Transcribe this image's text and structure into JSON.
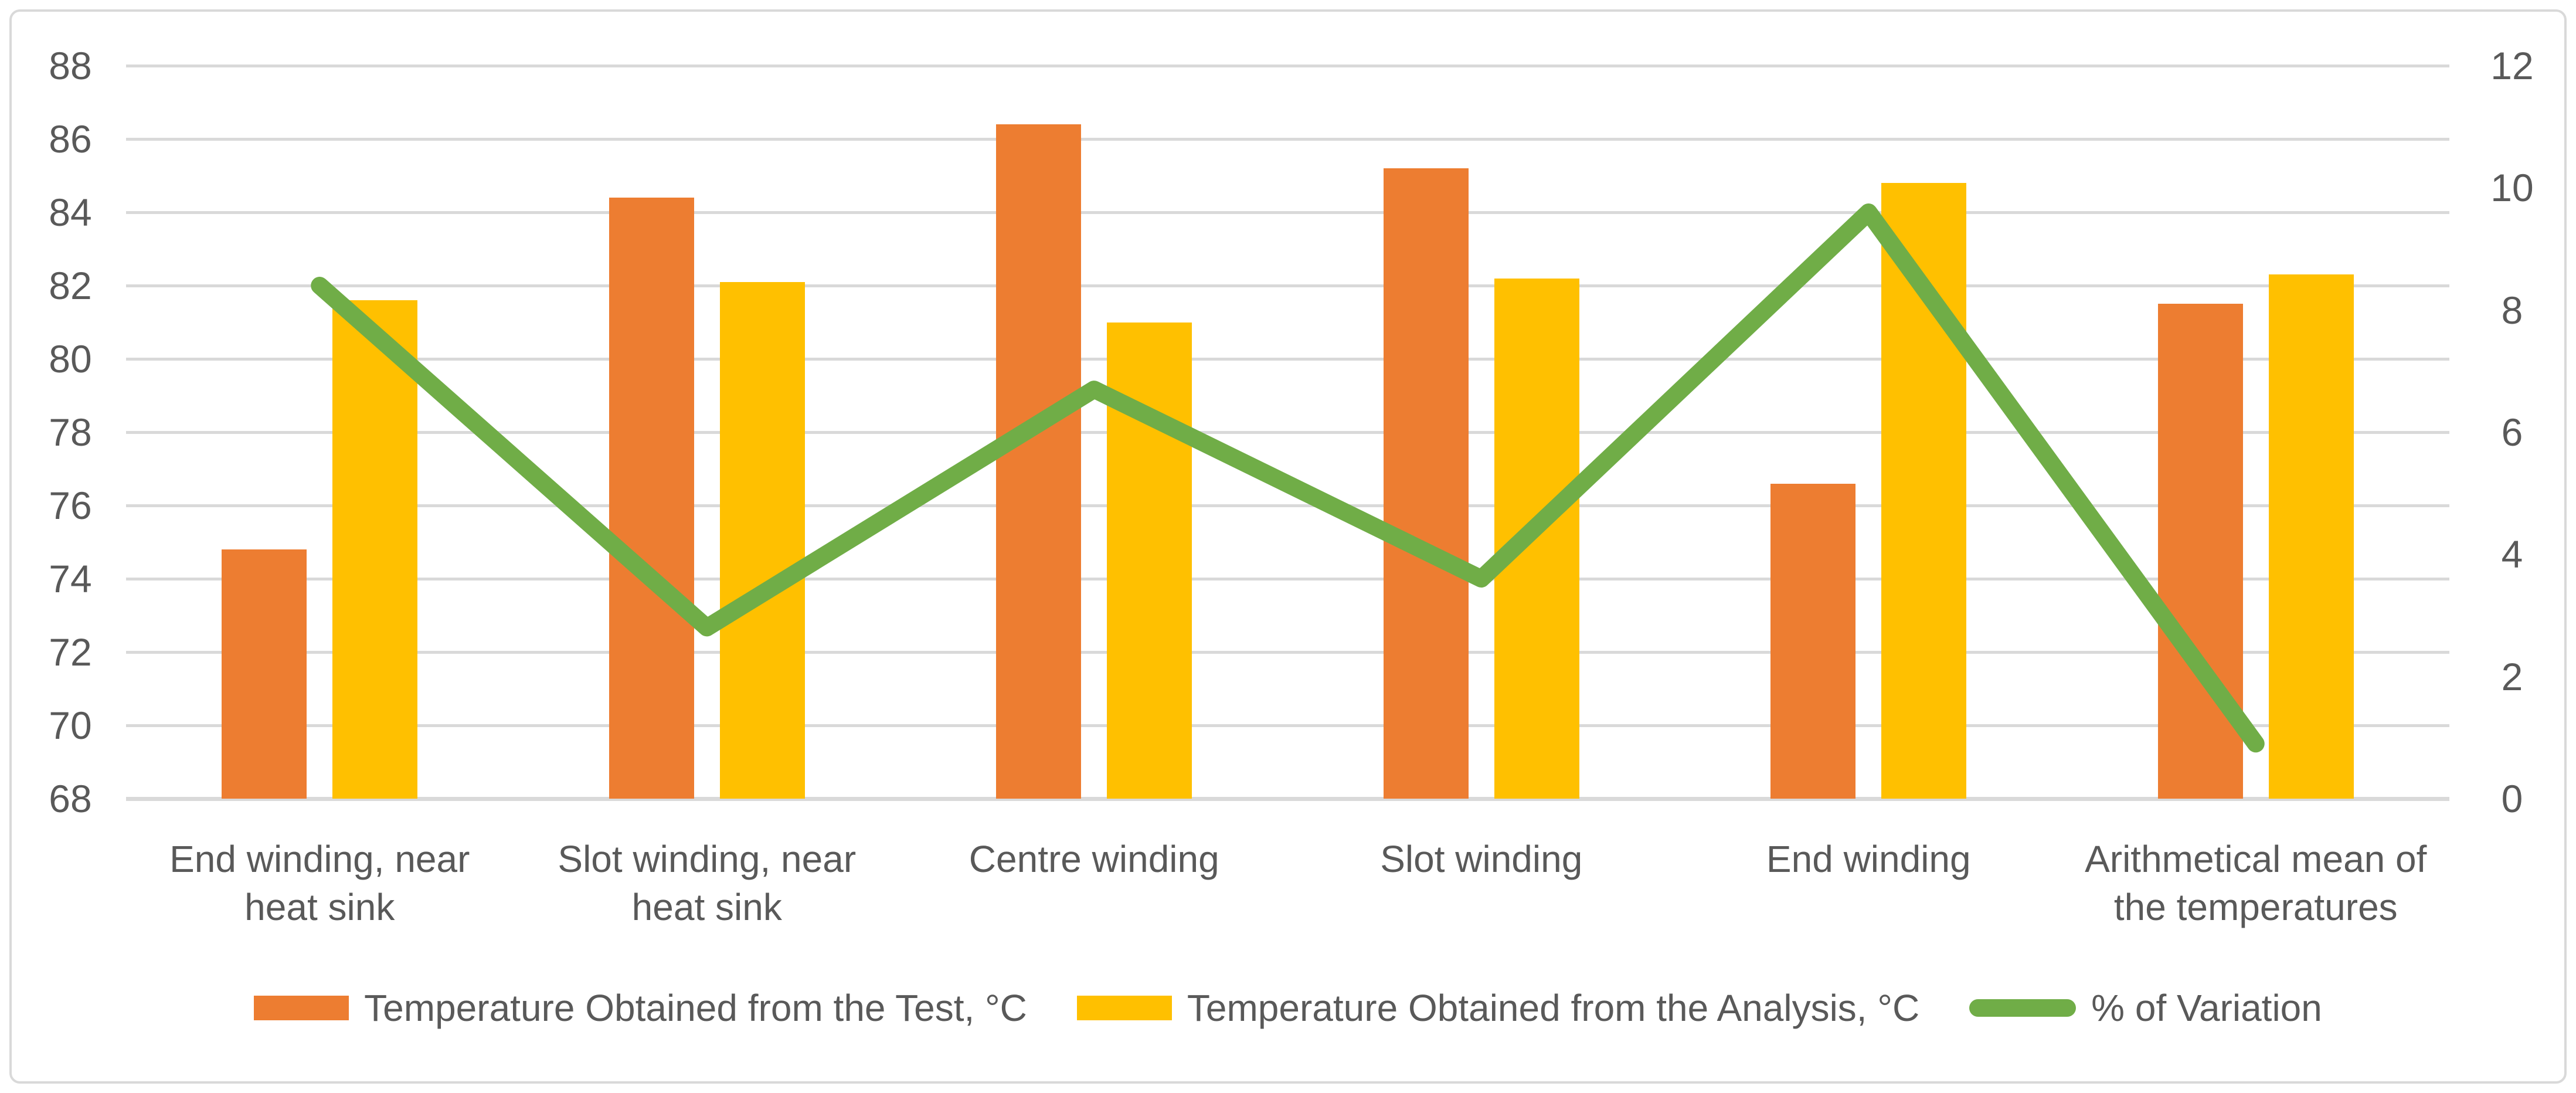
{
  "chart_data": {
    "type": "combo_bar_line",
    "title": "",
    "grid": true,
    "legend_position": "bottom",
    "categories": [
      {
        "label": "End winding, near heat sink",
        "lines": [
          "End winding, near",
          "heat sink"
        ]
      },
      {
        "label": "Slot winding, near heat sink",
        "lines": [
          "Slot winding, near",
          "heat sink"
        ]
      },
      {
        "label": "Centre winding",
        "lines": [
          "Centre winding"
        ]
      },
      {
        "label": "Slot winding",
        "lines": [
          "Slot winding"
        ]
      },
      {
        "label": "End winding",
        "lines": [
          "End winding"
        ]
      },
      {
        "label": "Arithmetical mean of the temperatures",
        "lines": [
          "Arithmetical mean of",
          "the temperatures"
        ]
      }
    ],
    "series": [
      {
        "name": "Temperature Obtained from the Test, °C",
        "type": "bar",
        "axis": "left",
        "color": "#ED7D31",
        "values": [
          74.8,
          84.4,
          86.4,
          85.2,
          76.6,
          81.5
        ]
      },
      {
        "name": "Temperature Obtained from the Analysis, °C",
        "type": "bar",
        "axis": "left",
        "color": "#FFC000",
        "values": [
          81.6,
          82.1,
          81.0,
          82.2,
          84.8,
          82.3
        ]
      },
      {
        "name": "% of Variation",
        "type": "line",
        "axis": "right",
        "color": "#70AD47",
        "values": [
          8.4,
          2.8,
          6.7,
          3.6,
          9.6,
          0.9
        ]
      }
    ],
    "left_axis": {
      "min": 68,
      "max": 88,
      "step": 2,
      "tick_labels": [
        "88",
        "86",
        "84",
        "82",
        "80",
        "78",
        "76",
        "74",
        "72",
        "70",
        "68"
      ]
    },
    "right_axis": {
      "min": 0,
      "max": 12,
      "step": 2,
      "tick_labels": [
        "12",
        "10",
        "8",
        "6",
        "4",
        "2",
        "0"
      ]
    },
    "colors": {
      "grid": "#D9D9D9",
      "axis_line": "#D9D9D9",
      "text": "#595959",
      "frame_border": "#D9D9D9",
      "background": "#FFFFFF"
    }
  }
}
